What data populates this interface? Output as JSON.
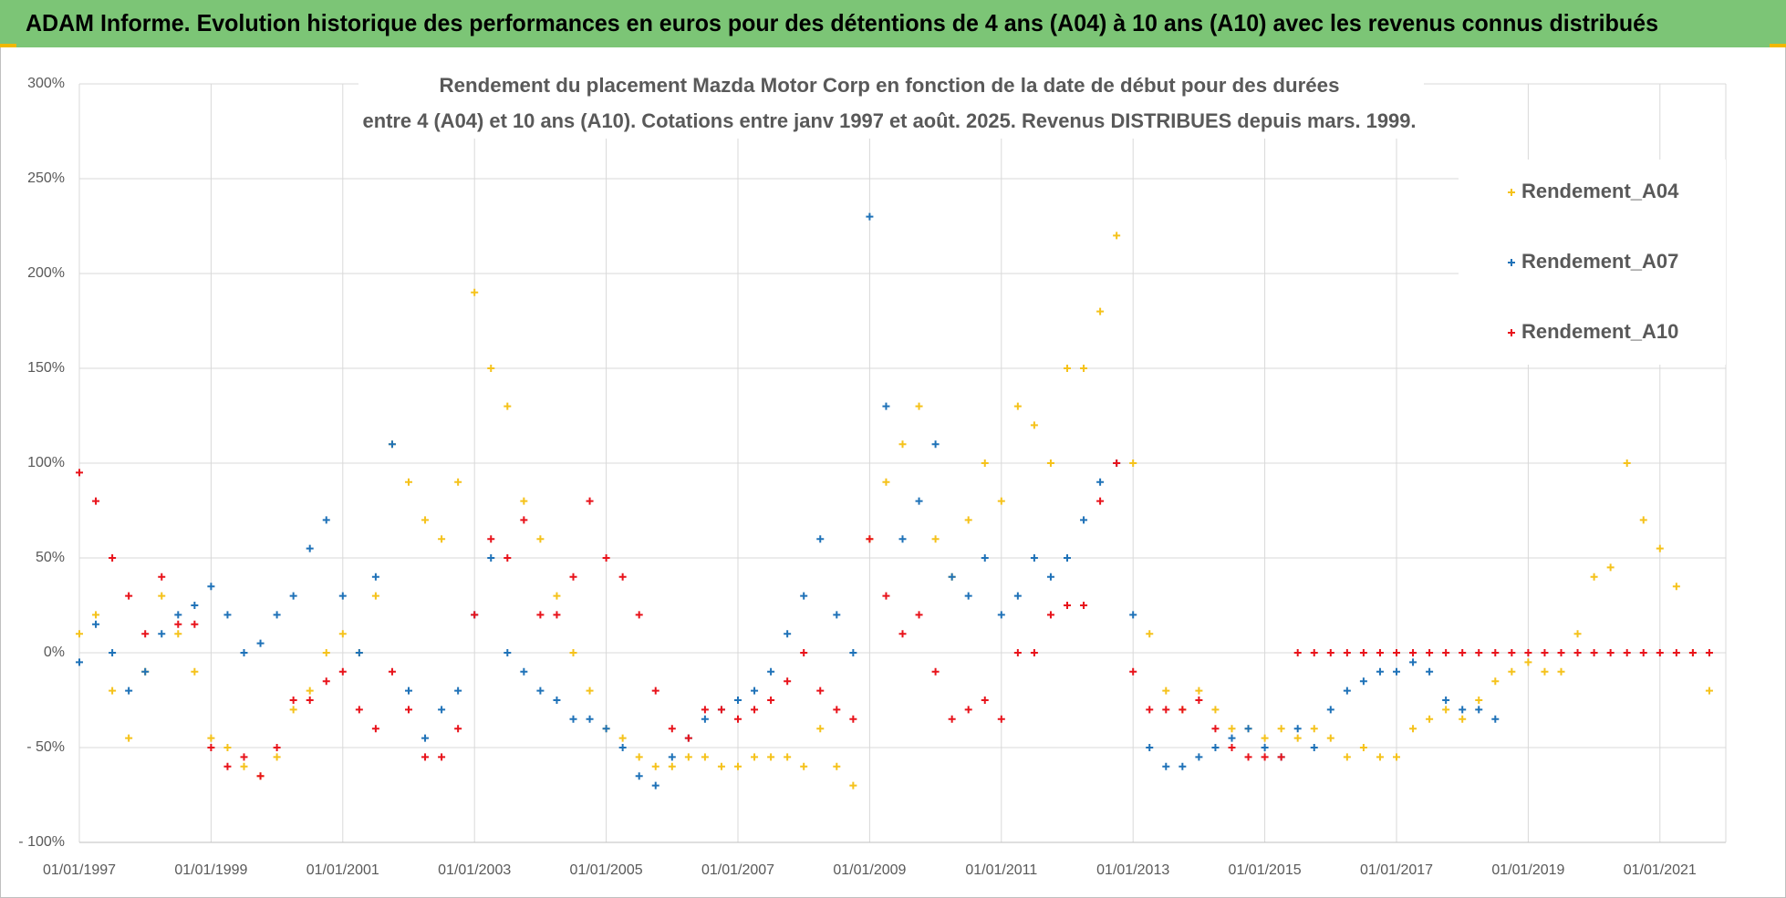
{
  "header": {
    "title": "ADAM Informe. Evolution historique des performances en euros pour des détentions de 4 ans (A04) à 10 ans (A10) avec les revenus connus distribués"
  },
  "chart_data": {
    "type": "scatter",
    "title": "Rendement du placement Mazda Motor Corp en fonction de la date de début pour des durées",
    "subtitle": "entre 4 (A04) et 10 ans (A10). Cotations entre janv 1997 et août. 2025. Revenus DISTRIBUES depuis mars. 1999.",
    "x": [
      "01/01/1997",
      "01/04/1997",
      "01/07/1997",
      "01/10/1997",
      "01/01/1998",
      "01/04/1998",
      "01/07/1998",
      "01/10/1998",
      "01/01/1999",
      "01/04/1999",
      "01/07/1999",
      "01/10/1999",
      "01/01/2000",
      "01/04/2000",
      "01/07/2000",
      "01/10/2000",
      "01/01/2001",
      "01/04/2001",
      "01/07/2001",
      "01/10/2001",
      "01/01/2002",
      "01/04/2002",
      "01/07/2002",
      "01/10/2002",
      "01/01/2003",
      "01/04/2003",
      "01/07/2003",
      "01/10/2003",
      "01/01/2004",
      "01/04/2004",
      "01/07/2004",
      "01/10/2004",
      "01/01/2005",
      "01/04/2005",
      "01/07/2005",
      "01/10/2005",
      "01/01/2006",
      "01/04/2006",
      "01/07/2006",
      "01/10/2006",
      "01/01/2007",
      "01/04/2007",
      "01/07/2007",
      "01/10/2007",
      "01/01/2008",
      "01/04/2008",
      "01/07/2008",
      "01/10/2008",
      "01/01/2009",
      "01/04/2009",
      "01/07/2009",
      "01/10/2009",
      "01/01/2010",
      "01/04/2010",
      "01/07/2010",
      "01/10/2010",
      "01/01/2011",
      "01/04/2011",
      "01/07/2011",
      "01/10/2011",
      "01/01/2012",
      "01/04/2012",
      "01/07/2012",
      "01/10/2012",
      "01/01/2013",
      "01/04/2013",
      "01/07/2013",
      "01/10/2013",
      "01/01/2014",
      "01/04/2014",
      "01/07/2014",
      "01/10/2014",
      "01/01/2015",
      "01/04/2015",
      "01/07/2015",
      "01/10/2015",
      "01/01/2016",
      "01/04/2016",
      "01/07/2016",
      "01/10/2016",
      "01/01/2017",
      "01/04/2017",
      "01/07/2017",
      "01/10/2017",
      "01/01/2018",
      "01/04/2018",
      "01/07/2018",
      "01/10/2018",
      "01/01/2019",
      "01/04/2019",
      "01/07/2019",
      "01/10/2019",
      "01/01/2020",
      "01/04/2020",
      "01/07/2020",
      "01/10/2020",
      "01/01/2021",
      "01/04/2021",
      "01/07/2021",
      "01/10/2021"
    ],
    "series": [
      {
        "name": "Rendement_A04",
        "color": "#f5c21b",
        "values": [
          10,
          20,
          -20,
          -45,
          -10,
          30,
          10,
          -10,
          -45,
          -50,
          -60,
          -65,
          -55,
          -30,
          -20,
          0,
          10,
          0,
          30,
          110,
          90,
          70,
          60,
          90,
          190,
          150,
          130,
          80,
          60,
          30,
          0,
          -20,
          -40,
          -45,
          -55,
          -60,
          -60,
          -55,
          -55,
          -60,
          -60,
          -55,
          -55,
          -55,
          -60,
          -40,
          -60,
          -70,
          60,
          90,
          110,
          130,
          60,
          40,
          70,
          100,
          80,
          130,
          120,
          100,
          150,
          150,
          180,
          220,
          100,
          10,
          -20,
          -30,
          -20,
          -30,
          -40,
          -40,
          -45,
          -40,
          -45,
          -40,
          -45,
          -55,
          -50,
          -55,
          -55,
          -40,
          -35,
          -30,
          -35,
          -25,
          -15,
          -10,
          -5,
          -10,
          -10,
          10,
          40,
          45,
          100,
          70,
          55,
          35,
          0,
          -20
        ]
      },
      {
        "name": "Rendement_A07",
        "color": "#1f72b8",
        "values": [
          -5,
          15,
          0,
          -20,
          -10,
          10,
          20,
          25,
          35,
          20,
          0,
          5,
          20,
          30,
          55,
          70,
          30,
          0,
          40,
          110,
          -20,
          -45,
          -30,
          -20,
          20,
          50,
          0,
          -10,
          -20,
          -25,
          -35,
          -35,
          -40,
          -50,
          -65,
          -70,
          -55,
          -45,
          -35,
          -30,
          -25,
          -20,
          -10,
          10,
          30,
          60,
          20,
          0,
          230,
          130,
          60,
          80,
          110,
          40,
          30,
          50,
          20,
          30,
          50,
          40,
          50,
          70,
          90,
          100,
          20,
          -50,
          -60,
          -60,
          -55,
          -50,
          -45,
          -40,
          -50,
          -55,
          -40,
          -50,
          -30,
          -20,
          -15,
          -10,
          -10,
          -5,
          -10,
          -25,
          -30,
          -30,
          -35,
          null,
          null,
          null,
          null,
          null,
          null,
          null,
          null,
          null,
          null,
          null,
          null,
          null
        ]
      },
      {
        "name": "Rendement_A10",
        "color": "#e8131b",
        "values": [
          95,
          80,
          50,
          30,
          10,
          40,
          15,
          15,
          -50,
          -60,
          -55,
          -65,
          -50,
          -25,
          -25,
          -15,
          -10,
          -30,
          -40,
          -10,
          -30,
          -55,
          -55,
          -40,
          20,
          60,
          50,
          70,
          20,
          20,
          40,
          80,
          50,
          40,
          20,
          -20,
          -40,
          -45,
          -30,
          -30,
          -35,
          -30,
          -25,
          -15,
          0,
          -20,
          -30,
          -35,
          60,
          30,
          10,
          20,
          -10,
          -35,
          -30,
          -25,
          -35,
          0,
          0,
          20,
          25,
          25,
          80,
          100,
          -10,
          -30,
          -30,
          -30,
          -25,
          -40,
          -50,
          -55,
          -55,
          -55,
          0,
          0,
          0,
          0,
          0,
          0,
          0,
          0,
          0,
          0,
          0,
          0,
          0,
          0,
          0,
          0,
          0,
          0,
          0,
          0,
          0,
          0,
          0,
          0,
          0,
          0
        ]
      }
    ],
    "xlim": [
      "01/01/1997",
      "01/01/2022"
    ],
    "xticks": [
      "01/01/1997",
      "01/01/1999",
      "01/01/2001",
      "01/01/2003",
      "01/01/2005",
      "01/01/2007",
      "01/01/2009",
      "01/01/2011",
      "01/01/2013",
      "01/01/2015",
      "01/01/2017",
      "01/01/2019",
      "01/01/2021"
    ],
    "ylim": [
      -100,
      300
    ],
    "yticks": [
      {
        "value": -100,
        "label": "- 100%"
      },
      {
        "value": -50,
        "label": "- 50%"
      },
      {
        "value": 0,
        "label": "0%"
      },
      {
        "value": 50,
        "label": "50%"
      },
      {
        "value": 100,
        "label": "100%"
      },
      {
        "value": 150,
        "label": "150%"
      },
      {
        "value": 200,
        "label": "200%"
      },
      {
        "value": 250,
        "label": "250%"
      },
      {
        "value": 300,
        "label": "300%"
      }
    ],
    "grid": true,
    "legend": "upper right"
  }
}
